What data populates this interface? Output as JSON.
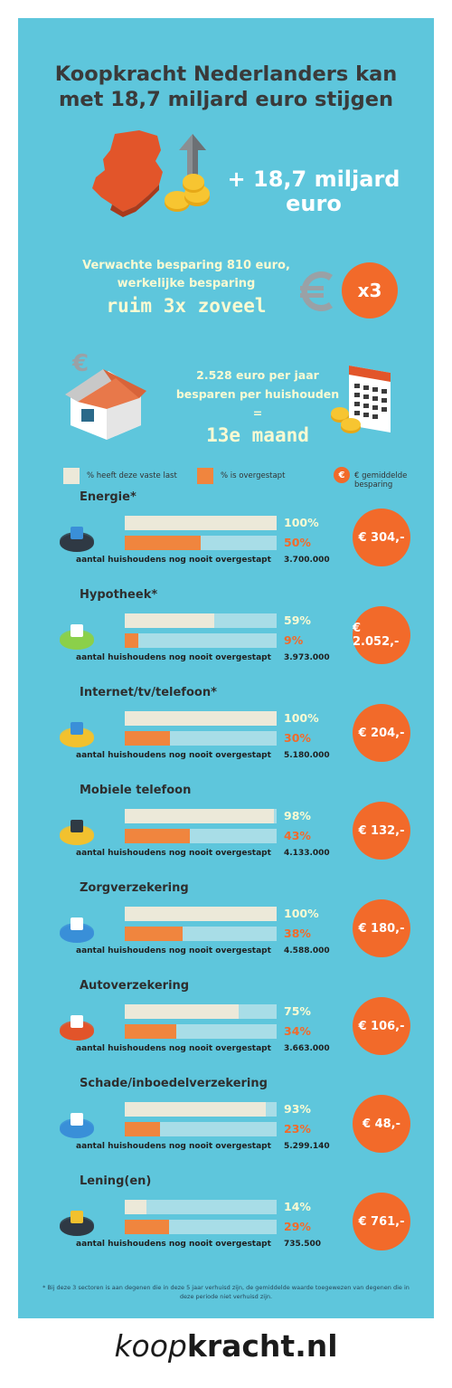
{
  "header": {
    "title_line1": "Koopkracht Nederlanders kan",
    "title_line2": "met 18,7 miljard euro stijgen"
  },
  "highlight": {
    "amount_line1": "+ 18,7 miljard",
    "amount_line2": "euro"
  },
  "saving": {
    "line1": "Verwachte besparing 810 euro,",
    "line2": "werkelijke besparing",
    "line3": "ruim 3x zoveel",
    "badge": "x3"
  },
  "month": {
    "line1": "2.528 euro per jaar",
    "line2": "besparen per huishouden",
    "line3": "=",
    "line4": "13e maand"
  },
  "legend": {
    "has_label": "% heeft deze vaste last",
    "switched_label": "% is overgestapt",
    "saving_label": "€ gemiddelde besparing",
    "coin_symbol": "€"
  },
  "colors": {
    "background": "#5ec6dc",
    "has_bar": "#ece9d9",
    "switched_bar": "#f0853e",
    "track": "#a8dde7",
    "accent": "#f26a2a",
    "has_text": "#fafad2",
    "switched_text": "#f26a2a"
  },
  "chart_data": {
    "type": "bar",
    "categories": [
      "Energie*",
      "Hypotheek*",
      "Internet/tv/telefoon*",
      "Mobiele telefoon",
      "Zorgverzekering",
      "Autoverzekering",
      "Schade/inboedelverzekering",
      "Lening(en)"
    ],
    "series": [
      {
        "name": "% heeft deze vaste last",
        "values": [
          100,
          59,
          100,
          98,
          100,
          75,
          93,
          14
        ]
      },
      {
        "name": "% is overgestapt",
        "values": [
          50,
          9,
          30,
          43,
          38,
          34,
          23,
          29
        ]
      }
    ],
    "ylim": [
      0,
      100
    ]
  },
  "categories": [
    {
      "title": "Energie*",
      "has_pct": "100%",
      "switched_pct": "50%",
      "households_label": "aantal huishoudens nog nooit overgestapt",
      "households": "3.700.000",
      "saving": "€ 304,-",
      "icon": "energy-icon"
    },
    {
      "title": "Hypotheek*",
      "has_pct": "59%",
      "switched_pct": "9%",
      "households_label": "aantal huishoudens nog nooit overgestapt",
      "households": "3.973.000",
      "saving": "€ 2.052,-",
      "icon": "house-icon"
    },
    {
      "title": "Internet/tv/telefoon*",
      "has_pct": "100%",
      "switched_pct": "30%",
      "households_label": "aantal huishoudens nog nooit overgestapt",
      "households": "5.180.000",
      "saving": "€ 204,-",
      "icon": "laptop-icon"
    },
    {
      "title": "Mobiele telefoon",
      "has_pct": "98%",
      "switched_pct": "43%",
      "households_label": "aantal huishoudens nog nooit overgestapt",
      "households": "4.133.000",
      "saving": "€ 132,-",
      "icon": "mobile-phone-icon"
    },
    {
      "title": "Zorgverzekering",
      "has_pct": "100%",
      "switched_pct": "38%",
      "households_label": "aantal huishoudens nog nooit overgestapt",
      "households": "4.588.000",
      "saving": "€ 180,-",
      "icon": "health-icon"
    },
    {
      "title": "Autoverzekering",
      "has_pct": "75%",
      "switched_pct": "34%",
      "households_label": "aantal huishoudens nog nooit overgestapt",
      "households": "3.663.000",
      "saving": "€ 106,-",
      "icon": "car-icon"
    },
    {
      "title": "Schade/inboedelverzekering",
      "has_pct": "93%",
      "switched_pct": "23%",
      "households_label": "aantal huishoudens nog nooit overgestapt",
      "households": "5.299.140",
      "saving": "€ 48,-",
      "icon": "document-icon"
    },
    {
      "title": "Lening(en)",
      "has_pct": "14%",
      "switched_pct": "29%",
      "households_label": "aantal huishoudens nog nooit overgestapt",
      "households": "735.500",
      "saving": "€ 761,-",
      "icon": "money-icon"
    }
  ],
  "footnote": "* Bij deze 3 sectoren is aan degenen die in deze 5 jaar verhuisd zijn, de gemiddelde waarde toegewezen van degenen die in deze periode niet verhuisd zijn.",
  "brand": {
    "part1": "koop",
    "part2": "kracht.nl"
  }
}
